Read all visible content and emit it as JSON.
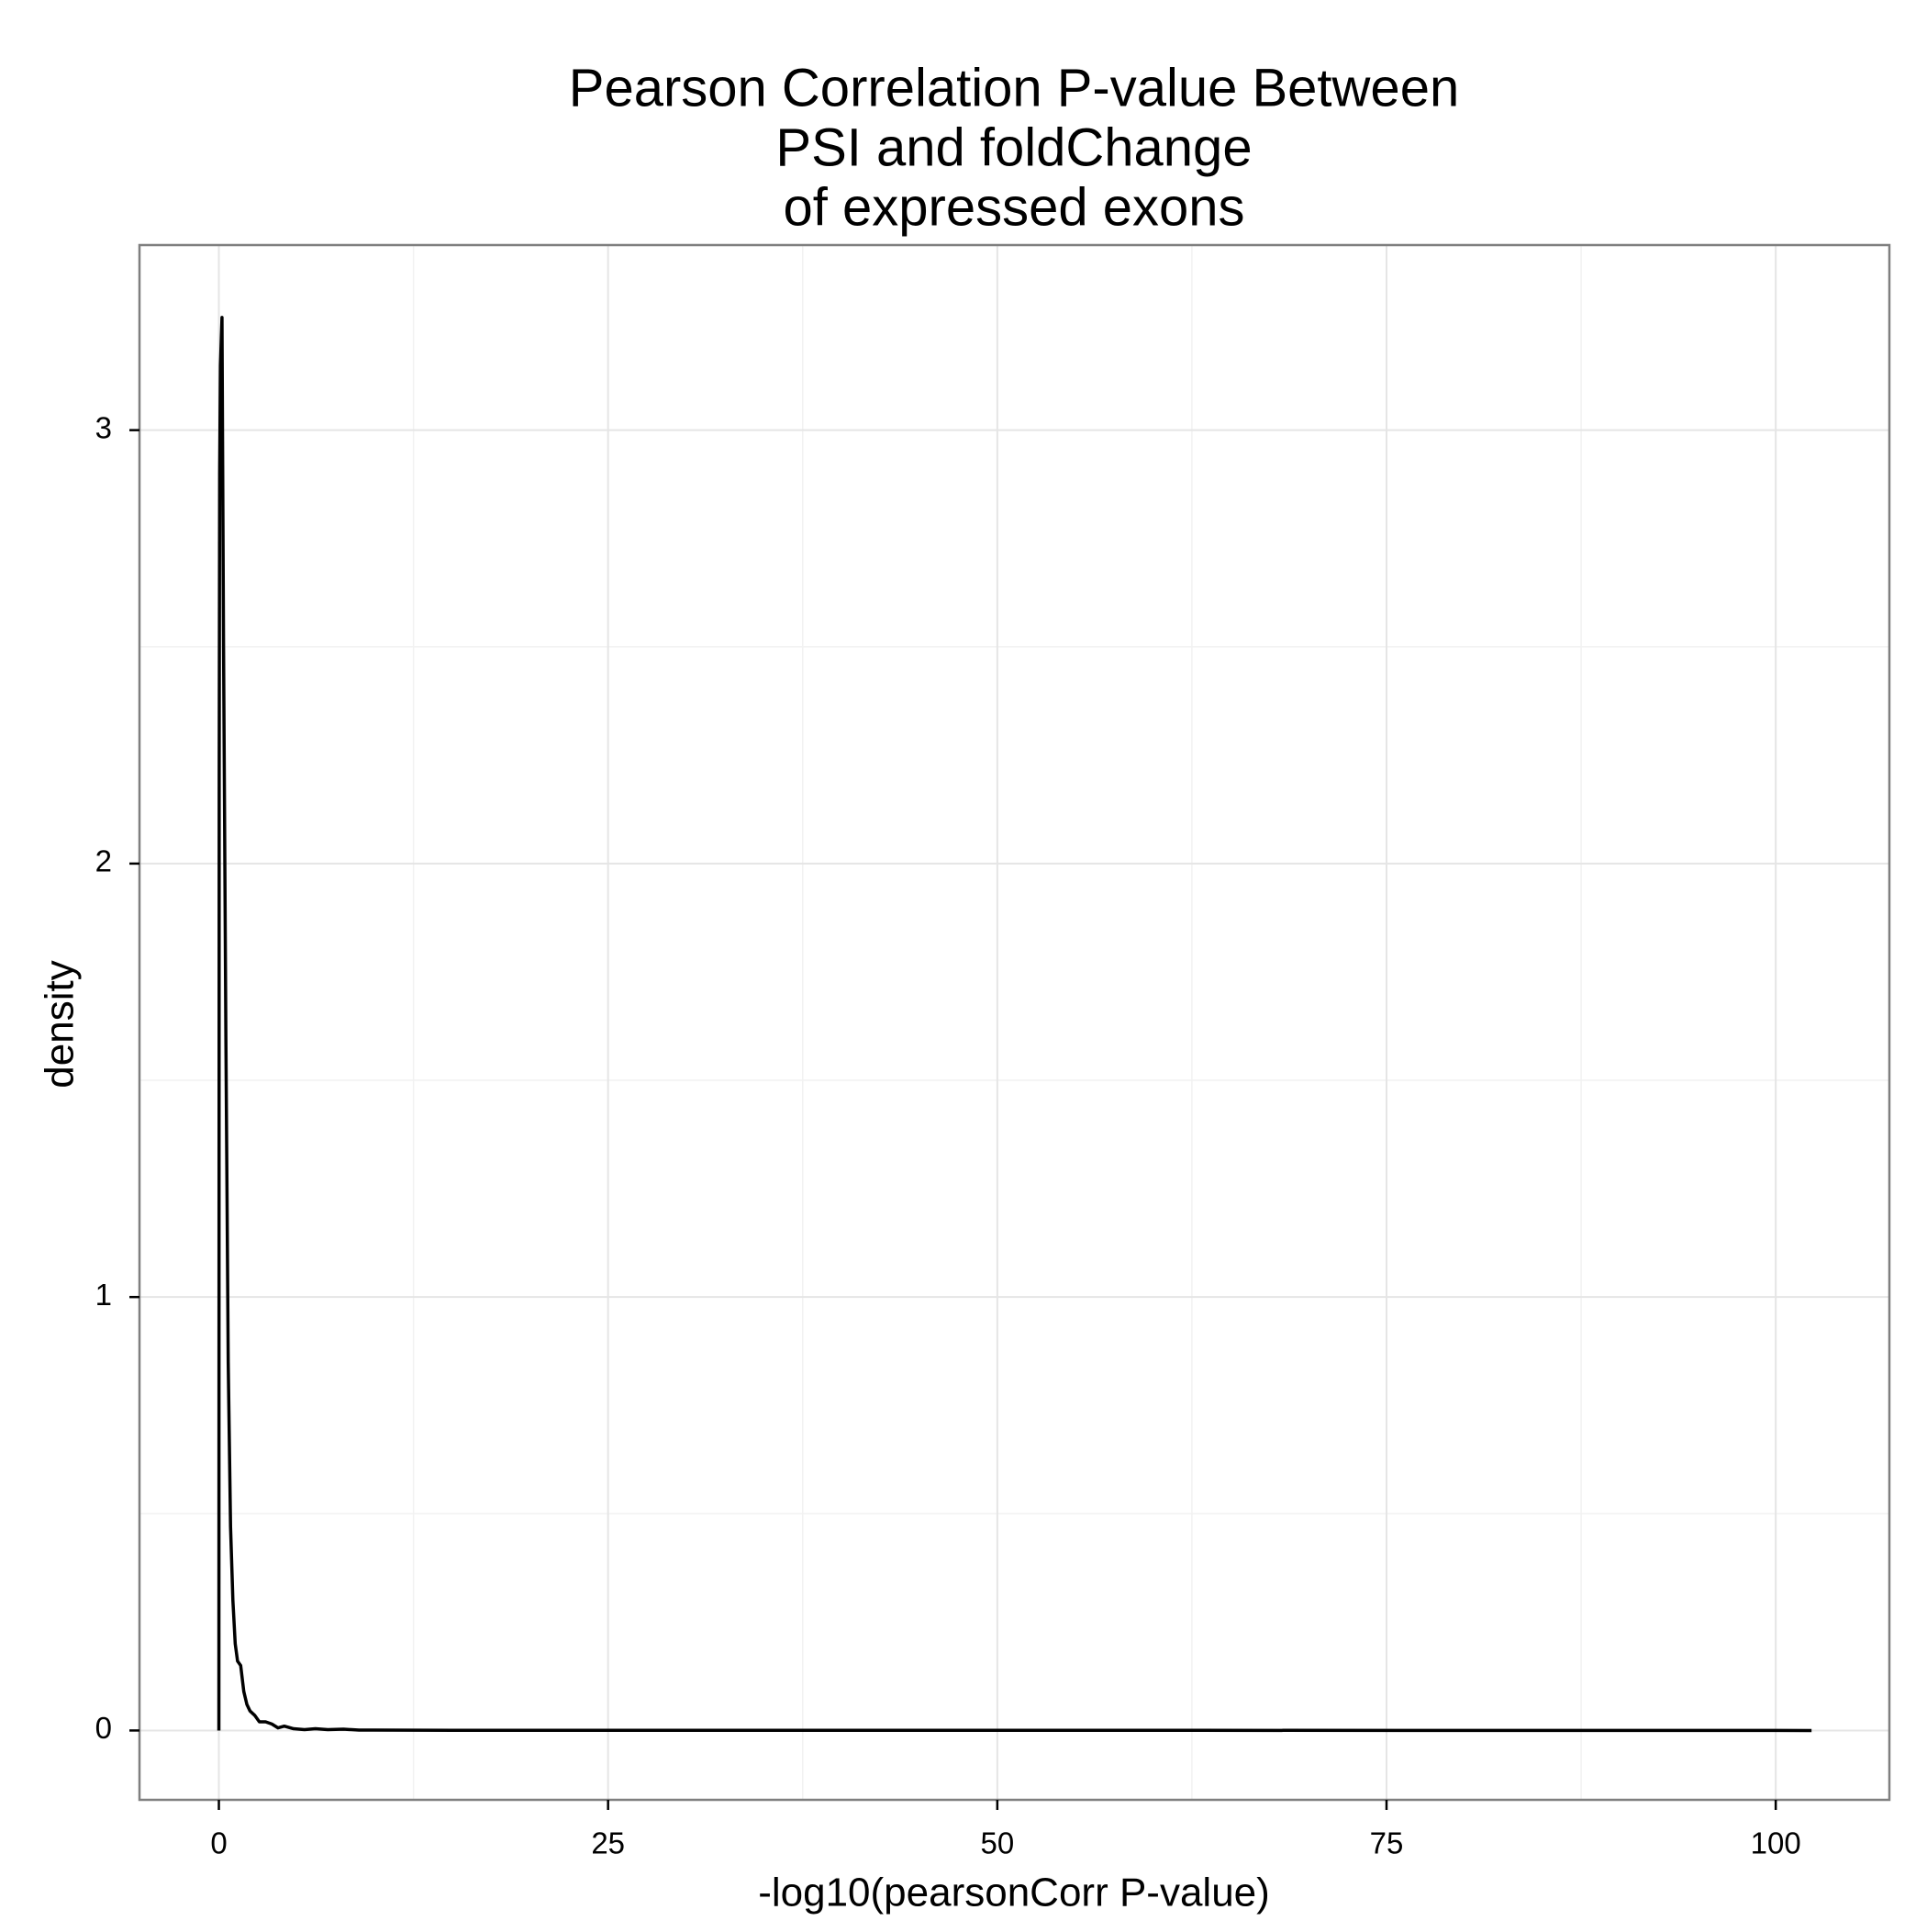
{
  "chart_data": {
    "type": "line",
    "title": [
      "Pearson Correlation P-value Between",
      "PSI and foldChange",
      "of expressed exons"
    ],
    "x_label": "-log10(pearsonCorr P-value)",
    "y_label": "density",
    "x": [
      0,
      0.02,
      0.05,
      0.1,
      0.2,
      0.3,
      0.45,
      0.6,
      0.75,
      0.9,
      1.05,
      1.2,
      1.4,
      1.6,
      1.8,
      2.0,
      2.3,
      2.6,
      3.0,
      3.4,
      3.8,
      4.2,
      4.8,
      5.5,
      6.2,
      7.0,
      8.0,
      9.0,
      10.0,
      15.0,
      20.0,
      31.0,
      40.0,
      55.0,
      63.0,
      80.0,
      100.0,
      102.3
    ],
    "series": [
      {
        "name": "density",
        "color": "#000000",
        "values": [
          0,
          2.2,
          2.9,
          3.15,
          3.26,
          2.5,
          1.6,
          0.85,
          0.47,
          0.3,
          0.2,
          0.16,
          0.15,
          0.09,
          0.06,
          0.045,
          0.035,
          0.02,
          0.02,
          0.015,
          0.006,
          0.01,
          0.004,
          0.002,
          0.004,
          0.002,
          0.003,
          0.001,
          0.001,
          0.0005,
          0.0003,
          0.0005,
          0.0004,
          0.0004,
          0.0003,
          0.0002,
          0.0001,
          0
        ]
      }
    ],
    "xlim": [
      -5.1,
      107.3
    ],
    "ylim": [
      -0.16,
      3.427
    ],
    "xticks": [
      0,
      25,
      50,
      75,
      100
    ],
    "yticks": [
      0,
      1,
      2,
      3
    ],
    "xminorticks": [
      12.5,
      37.5,
      62.5,
      87.5
    ],
    "yminorticks": [
      0.5,
      1.5,
      2.5
    ],
    "grid": true
  }
}
